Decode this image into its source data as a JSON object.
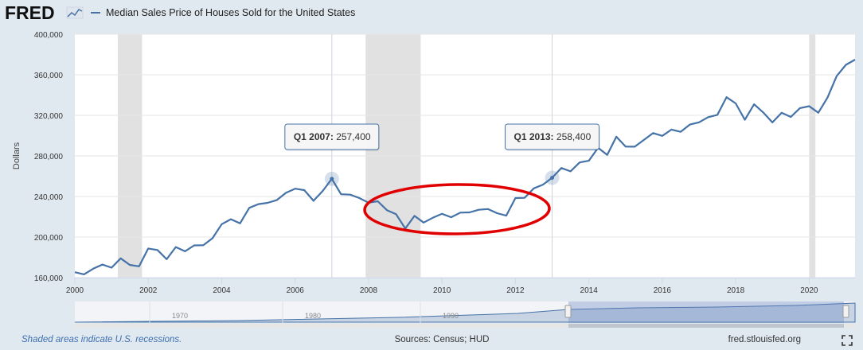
{
  "header": {
    "logo_text": "FRED",
    "series_title": "Median Sales Price of Houses Sold for the United States"
  },
  "footer": {
    "recession_note": "Shaded areas indicate U.S. recessions.",
    "sources": "Sources: Census; HUD",
    "site": "fred.stlouisfed.org",
    "fullscreen_icon": "fullscreen-icon"
  },
  "colors": {
    "line": "#4572a7",
    "recession": "#e1e1e1",
    "annotation": "#e00000",
    "page_bg": "#e1e9f0"
  },
  "tooltips": [
    {
      "label": "Q1 2007:",
      "value": "257,400",
      "x": 2007.0,
      "y": 257400
    },
    {
      "label": "Q1 2013:",
      "value": "258,400",
      "x": 2013.0,
      "y": 258400
    }
  ],
  "navigator": {
    "ticks": [
      "1970",
      "1980",
      "1990"
    ]
  },
  "chart_data": {
    "type": "line",
    "title": "Median Sales Price of Houses Sold for the United States",
    "ylabel": "Dollars",
    "xlabel": "",
    "xlim": [
      2000.0,
      2021.25
    ],
    "ylim": [
      160000,
      400000
    ],
    "y_ticks": [
      "160,000",
      "200,000",
      "240,000",
      "280,000",
      "320,000",
      "360,000",
      "400,000"
    ],
    "y_tick_values": [
      160000,
      200000,
      240000,
      280000,
      320000,
      360000,
      400000
    ],
    "x_ticks": [
      "2000",
      "2002",
      "2004",
      "2006",
      "2008",
      "2010",
      "2012",
      "2014",
      "2016",
      "2018",
      "2020"
    ],
    "x_tick_values": [
      2000,
      2002,
      2004,
      2006,
      2008,
      2010,
      2012,
      2014,
      2016,
      2018,
      2020
    ],
    "recessions": [
      [
        2001.17,
        2001.83
      ],
      [
        2007.92,
        2009.42
      ],
      [
        2020.0,
        2020.17
      ]
    ],
    "grid": "horizontal",
    "series": [
      {
        "name": "Median Sales Price of Houses Sold for the United States",
        "x": [
          2000.0,
          2000.25,
          2000.5,
          2000.75,
          2001.0,
          2001.25,
          2001.5,
          2001.75,
          2002.0,
          2002.25,
          2002.5,
          2002.75,
          2003.0,
          2003.25,
          2003.5,
          2003.75,
          2004.0,
          2004.25,
          2004.5,
          2004.75,
          2005.0,
          2005.25,
          2005.5,
          2005.75,
          2006.0,
          2006.25,
          2006.5,
          2006.75,
          2007.0,
          2007.25,
          2007.5,
          2007.75,
          2008.0,
          2008.25,
          2008.5,
          2008.75,
          2009.0,
          2009.25,
          2009.5,
          2009.75,
          2010.0,
          2010.25,
          2010.5,
          2010.75,
          2011.0,
          2011.25,
          2011.5,
          2011.75,
          2012.0,
          2012.25,
          2012.5,
          2012.75,
          2013.0,
          2013.25,
          2013.5,
          2013.75,
          2014.0,
          2014.25,
          2014.5,
          2014.75,
          2015.0,
          2015.25,
          2015.5,
          2015.75,
          2016.0,
          2016.25,
          2016.5,
          2016.75,
          2017.0,
          2017.25,
          2017.5,
          2017.75,
          2018.0,
          2018.25,
          2018.5,
          2018.75,
          2019.0,
          2019.25,
          2019.5,
          2019.75,
          2020.0,
          2020.25,
          2020.5,
          2020.75,
          2021.0,
          2021.25
        ],
        "values": [
          165300,
          163200,
          168800,
          172900,
          169800,
          179000,
          172500,
          171100,
          188700,
          187200,
          178100,
          190100,
          186000,
          191800,
          191900,
          198800,
          212700,
          217600,
          213500,
          228800,
          232500,
          233700,
          236400,
          243600,
          247700,
          246300,
          235800,
          245400,
          257400,
          242200,
          241800,
          238400,
          233900,
          235300,
          226500,
          222500,
          208400,
          220900,
          214300,
          219000,
          222900,
          219500,
          224100,
          224300,
          226900,
          227600,
          223500,
          221100,
          238400,
          238700,
          248000,
          251700,
          258400,
          268100,
          264800,
          273600,
          275200,
          288000,
          281000,
          298900,
          289200,
          289100,
          295800,
          302500,
          299800,
          306000,
          303800,
          310900,
          313100,
          318200,
          320500,
          337900,
          331800,
          315600,
          330900,
          322800,
          313000,
          322500,
          318400,
          327100,
          329000,
          322600,
          337500,
          358700,
          369800,
          374900
        ]
      }
    ]
  }
}
